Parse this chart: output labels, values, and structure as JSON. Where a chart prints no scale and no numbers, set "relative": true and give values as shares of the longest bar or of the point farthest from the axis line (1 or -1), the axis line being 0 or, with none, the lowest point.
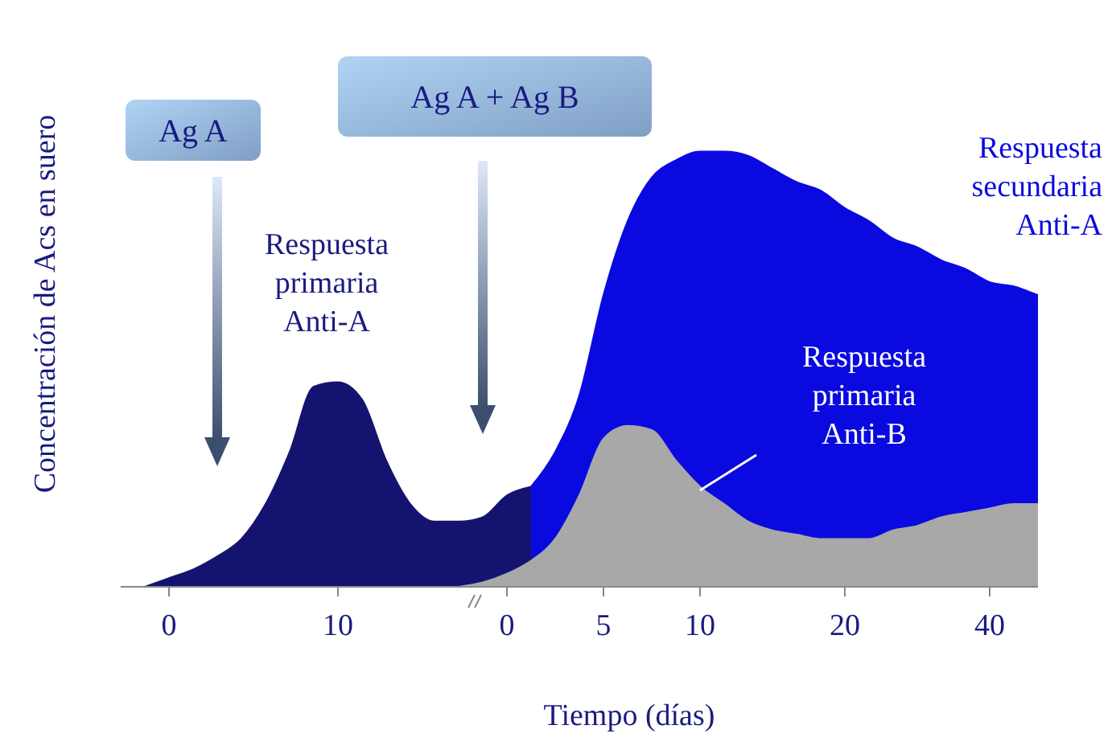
{
  "chart_data": {
    "type": "area",
    "relative": true,
    "ylabel": "Concentración de Acs en suero",
    "xlabel": "Tiempo (días)",
    "categories": [
      null,
      "0",
      null,
      null,
      null,
      null,
      null,
      null,
      "10",
      null,
      null,
      null,
      null,
      null,
      null,
      "0",
      null,
      null,
      null,
      "5",
      null,
      null,
      null,
      "10",
      null,
      null,
      null,
      null,
      null,
      "20",
      null,
      null,
      null,
      null,
      null,
      "40",
      null,
      null
    ],
    "series": [
      {
        "name": "Respuesta primaria Anti-A",
        "color": "#141470",
        "values": [
          0,
          0.02,
          0.04,
          0.07,
          0.11,
          0.19,
          0.31,
          0.46,
          0.47,
          0.43,
          0.29,
          0.19,
          0.15,
          0.15,
          0.16,
          0.21,
          0.23,
          null,
          null,
          null,
          null,
          null,
          null,
          null,
          null,
          null,
          null,
          null,
          null,
          null,
          null,
          null,
          null,
          null,
          null,
          null,
          null,
          null
        ]
      },
      {
        "name": "Respuesta secundaria Anti-A",
        "color": "#0a0ae0",
        "values": [
          null,
          null,
          null,
          null,
          null,
          null,
          null,
          null,
          null,
          null,
          null,
          null,
          null,
          null,
          null,
          null,
          0.23,
          0.31,
          0.44,
          0.67,
          0.84,
          0.94,
          0.98,
          1,
          1,
          0.99,
          0.96,
          0.93,
          0.91,
          0.87,
          0.84,
          0.8,
          0.78,
          0.75,
          0.73,
          0.7,
          0.69,
          0.67
        ]
      },
      {
        "name": "Respuesta primaria Anti-B",
        "color": "#a8a8a8",
        "values": [
          null,
          null,
          null,
          null,
          null,
          null,
          null,
          null,
          null,
          null,
          null,
          null,
          null,
          0,
          0.01,
          0.03,
          0.06,
          0.11,
          0.21,
          0.34,
          0.37,
          0.36,
          0.29,
          0.23,
          0.19,
          0.15,
          0.13,
          0.12,
          0.11,
          0.11,
          0.11,
          0.13,
          0.14,
          0.16,
          0.17,
          0.18,
          0.19,
          0.19
        ]
      }
    ],
    "annotations": [
      "Ag A",
      "Ag A + Ag B"
    ]
  }
}
